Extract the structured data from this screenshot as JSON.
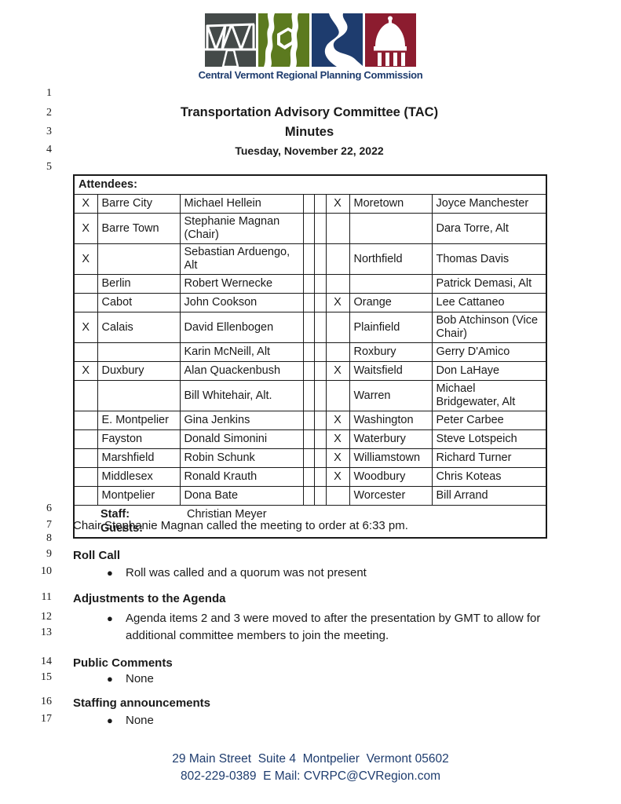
{
  "logo": {
    "org_name": "Central Vermont Regional Planning Commission",
    "colors": {
      "charcoal": "#444a49",
      "green": "#5c7a1f",
      "navy": "#1e3c6e",
      "maroon": "#8c1c2f"
    }
  },
  "header": {
    "title": "Transportation Advisory Committee (TAC)",
    "subtitle": "Minutes",
    "date": "Tuesday, November 22, 2022"
  },
  "line_numbers": [
    "1",
    "2",
    "3",
    "4",
    "5",
    "6",
    "7",
    "8",
    "9",
    "10",
    "11",
    "12",
    "13",
    "14",
    "15",
    "16",
    "17"
  ],
  "attendees_table": {
    "header": "Attendees:",
    "rows": [
      {
        "lx": "X",
        "ltown": "Barre City",
        "lname": "Michael Hellein",
        "rx": "X",
        "rtown": "Moretown",
        "rname": "Joyce Manchester"
      },
      {
        "lx": "X",
        "ltown": "Barre Town",
        "lname": "Stephanie Magnan (Chair)",
        "rx": "",
        "rtown": "",
        "rname": "Dara Torre, Alt"
      },
      {
        "lx": "X",
        "ltown": "",
        "lname": "Sebastian Arduengo, Alt",
        "rx": "",
        "rtown": "Northfield",
        "rname": "Thomas Davis"
      },
      {
        "lx": "",
        "ltown": "Berlin",
        "lname": "Robert Wernecke",
        "rx": "",
        "rtown": "",
        "rname": "Patrick Demasi, Alt"
      },
      {
        "lx": "",
        "ltown": "Cabot",
        "lname": "John Cookson",
        "rx": "X",
        "rtown": "Orange",
        "rname": "Lee Cattaneo"
      },
      {
        "lx": "X",
        "ltown": "Calais",
        "lname": "David Ellenbogen",
        "rx": "",
        "rtown": "Plainfield",
        "rname": "Bob Atchinson (Vice Chair)"
      },
      {
        "lx": "",
        "ltown": "",
        "lname": "Karin McNeill, Alt",
        "rx": "",
        "rtown": "Roxbury",
        "rname": "Gerry D'Amico"
      },
      {
        "lx": "X",
        "ltown": "Duxbury",
        "lname": "Alan Quackenbush",
        "rx": "X",
        "rtown": "Waitsfield",
        "rname": "Don LaHaye"
      },
      {
        "lx": "",
        "ltown": "",
        "lname": "Bill Whitehair, Alt.",
        "rx": "",
        "rtown": "Warren",
        "rname": "Michael Bridgewater, Alt"
      },
      {
        "lx": "",
        "ltown": "E. Montpelier",
        "lname": "Gina Jenkins",
        "rx": "X",
        "rtown": "Washington",
        "rname": "Peter Carbee"
      },
      {
        "lx": "",
        "ltown": "Fayston",
        "lname": "Donald Simonini",
        "rx": "X",
        "rtown": "Waterbury",
        "rname": "Steve Lotspeich"
      },
      {
        "lx": "",
        "ltown": "Marshfield",
        "lname": "Robin Schunk",
        "rx": "X",
        "rtown": "Williamstown",
        "rname": "Richard Turner"
      },
      {
        "lx": "",
        "ltown": "Middlesex",
        "lname": "Ronald Krauth",
        "rx": "X",
        "rtown": "Woodbury",
        "rname": "Chris Koteas"
      },
      {
        "lx": "",
        "ltown": "Montpelier",
        "lname": "Dona Bate",
        "rx": "",
        "rtown": "Worcester",
        "rname": "Bill Arrand"
      }
    ],
    "staff_label": "Staff:",
    "staff_value": "Christian Meyer",
    "guests_label": "Guests:"
  },
  "body": {
    "bullet": "●",
    "opening": "Chair Stephanie Magnan called the meeting to order at 6:33 pm.",
    "sections": [
      {
        "heading": "Roll Call",
        "bullets": [
          "Roll was called and a quorum was not present"
        ]
      },
      {
        "heading": "Adjustments to the Agenda",
        "bullets": [
          "Agenda items 2 and 3 were moved to after the presentation by GMT to allow for additional committee members to join the meeting."
        ]
      },
      {
        "heading": "Public Comments",
        "bullets": [
          "None"
        ]
      },
      {
        "heading": "Staffing announcements",
        "bullets": [
          "None"
        ]
      }
    ]
  },
  "footer": {
    "address": "29 Main Street  Suite 4  Montpelier  Vermont 05602",
    "contact": "802-229-0389  E Mail: CVRPC@CVRegion.com"
  }
}
